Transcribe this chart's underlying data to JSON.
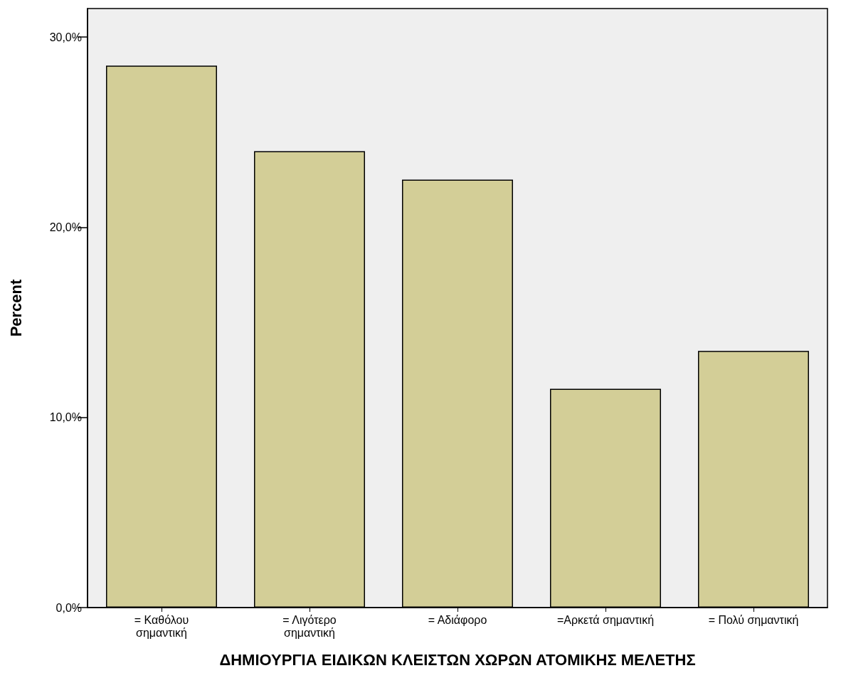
{
  "chart_data": {
    "type": "bar",
    "xlabel": "ΔΗΜΙΟΥΡΓΙΑ ΕΙΔΙΚΩΝ ΚΛΕΙΣΤΩΝ ΧΩΡΩΝ ΑΤΟΜΙΚΗΣ ΜΕΛΕΤΗΣ",
    "ylabel": "Percent",
    "categories": [
      "= Καθόλου\nσημαντική",
      "= Λιγότερο\nσημαντική",
      "= Αδιάφορο",
      "=Αρκετά σημαντική",
      "= Πολύ σημαντική"
    ],
    "values": [
      28.5,
      24.0,
      22.5,
      11.5,
      13.5
    ],
    "color": "#d3ce97",
    "ylim": [
      0,
      31.5
    ],
    "yticks": [
      {
        "value": 0,
        "label": "0,0%"
      },
      {
        "value": 10,
        "label": "10,0%"
      },
      {
        "value": 20,
        "label": "20,0%"
      },
      {
        "value": 30,
        "label": "30,0%"
      }
    ],
    "grid": false
  }
}
